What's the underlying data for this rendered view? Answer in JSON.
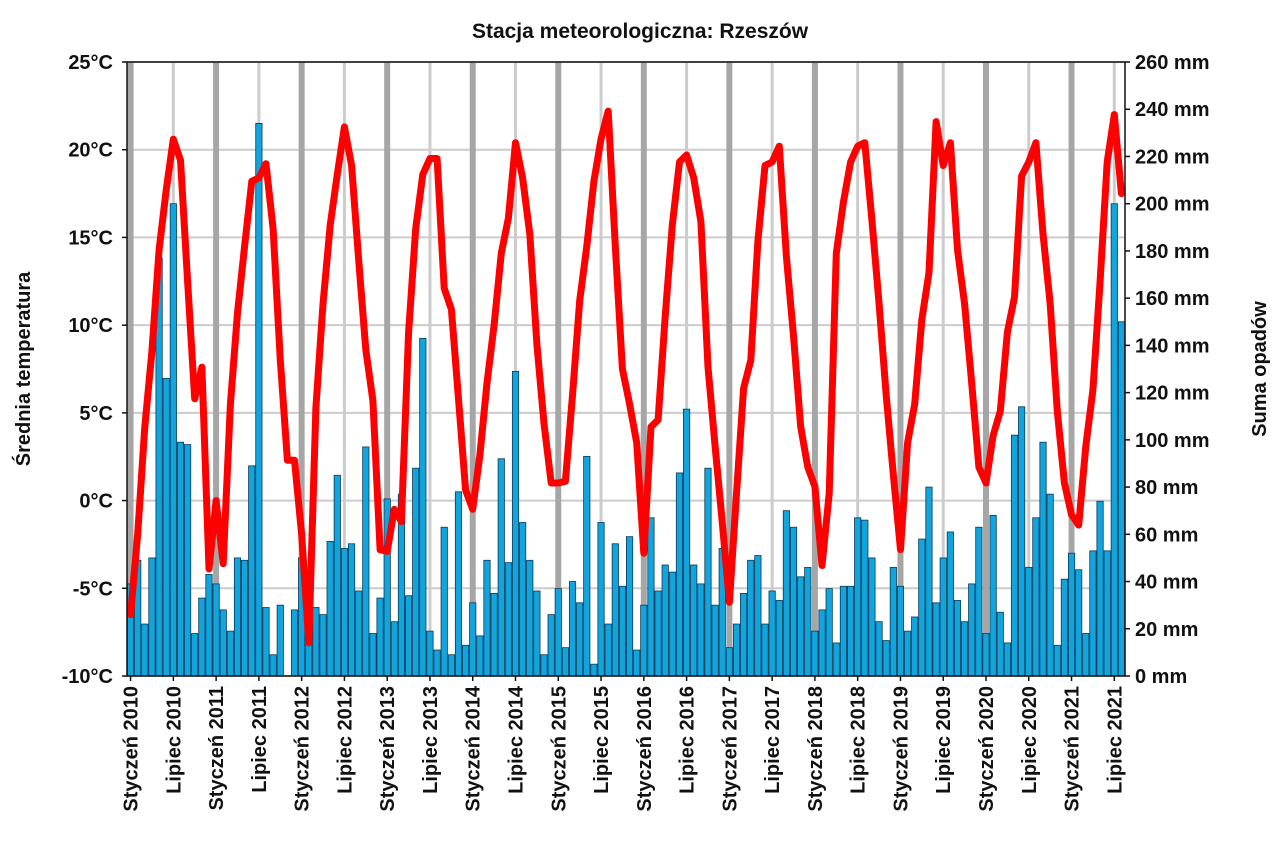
{
  "chart_data": {
    "type": "bar+line",
    "title": "Stacja meteorologiczna: Rzeszów",
    "ylabel_left": "Średnia temperatura",
    "ylabel_right": "Suma opadów",
    "ylim_left": [
      -10,
      25
    ],
    "ylim_right": [
      0,
      260
    ],
    "yticks_left": [
      "-10°C",
      "-5°C",
      "0°C",
      "5°C",
      "10°C",
      "15°C",
      "20°C",
      "25°C"
    ],
    "yticks_right": [
      "0 mm",
      "20 mm",
      "40 mm",
      "60 mm",
      "80 mm",
      "100 mm",
      "120 mm",
      "140 mm",
      "160 mm",
      "180 mm",
      "200 mm",
      "220 mm",
      "240 mm",
      "260 mm"
    ],
    "x_tick_labels": [
      "Styczeń 2010",
      "Lipiec 2010",
      "Styczeń 2011",
      "Lipiec 2011",
      "Styczeń 2012",
      "Lipiec 2012",
      "Styczeń 2013",
      "Lipiec 2013",
      "Styczeń 2014",
      "Lipiec 2014",
      "Styczeń 2015",
      "Lipiec 2015",
      "Styczeń 2016",
      "Lipiec 2016",
      "Styczeń 2017",
      "Lipiec 2017",
      "Styczeń 2018",
      "Lipiec 2018",
      "Styczeń 2019",
      "Lipiec 2019",
      "Styczeń 2020",
      "Lipiec 2020",
      "Styczeń 2021",
      "Lipiec 2021"
    ],
    "x_range": [
      "2010-01",
      "2021-08"
    ],
    "grid": true,
    "colors": {
      "precipitation": "#12a4dd",
      "temperature": "#ff0000",
      "year_grid": "#a6a6a6",
      "grid": "#cccccc"
    },
    "series": [
      {
        "type": "bar",
        "axis": "right",
        "unit": "mm",
        "values": [
          39,
          49,
          22,
          50,
          177,
          126,
          200,
          99,
          98,
          18,
          33,
          43,
          39,
          28,
          19,
          50,
          49,
          89,
          234,
          29,
          9,
          30,
          0,
          28,
          50,
          19,
          29,
          26,
          57,
          85,
          54,
          56,
          36,
          97,
          18,
          33,
          75,
          23,
          77,
          34,
          88,
          143,
          19,
          11,
          63,
          9,
          78,
          13,
          31,
          17,
          49,
          35,
          92,
          48,
          129,
          65,
          49,
          36,
          9,
          26,
          37,
          12,
          40,
          31,
          93,
          5,
          65,
          22,
          56,
          38,
          59,
          11,
          30,
          67,
          36,
          47,
          44,
          86,
          113,
          47,
          39,
          88,
          30,
          54,
          12,
          22,
          35,
          49,
          51,
          22,
          36,
          32,
          70,
          63,
          42,
          46,
          19,
          28,
          37,
          14,
          38,
          38,
          67,
          66,
          50,
          23,
          15,
          46,
          38,
          19,
          25,
          58,
          80,
          31,
          50,
          61,
          32,
          23,
          39,
          63,
          18,
          68,
          27,
          14,
          102,
          114,
          46,
          67,
          99,
          77,
          13,
          41,
          52,
          45,
          18,
          53,
          74,
          53,
          200,
          150
        ]
      },
      {
        "type": "line",
        "axis": "left",
        "unit": "°C",
        "values": [
          -6.5,
          -1.9,
          4.2,
          8.5,
          14.3,
          17.7,
          20.6,
          19.4,
          12.5,
          5.8,
          7.6,
          -3.9,
          0.0,
          -3.6,
          5.5,
          10.7,
          14.5,
          18.2,
          18.4,
          19.2,
          15.5,
          8.0,
          2.3,
          2.3,
          -1.9,
          -8.1,
          5.3,
          11.2,
          15.7,
          18.6,
          21.3,
          19.1,
          13.7,
          8.6,
          5.7,
          -2.8,
          -2.9,
          -0.5,
          -1.2,
          9.6,
          15.5,
          18.6,
          19.5,
          19.5,
          12.1,
          10.9,
          5.8,
          0.6,
          -0.5,
          2.6,
          6.7,
          10.0,
          14.1,
          16.1,
          20.4,
          18.4,
          15.2,
          8.9,
          4.4,
          1.0,
          1.0,
          1.1,
          6.0,
          11.4,
          14.5,
          18.2,
          20.6,
          22.2,
          14.5,
          7.5,
          5.5,
          3.3,
          -3.0,
          4.2,
          4.6,
          10.5,
          15.7,
          19.3,
          19.7,
          18.4,
          15.9,
          7.6,
          3.1,
          -1.2,
          -5.8,
          0.4,
          6.4,
          8.0,
          14.8,
          19.1,
          19.3,
          20.2,
          13.9,
          9.4,
          4.2,
          1.9,
          0.8,
          -3.7,
          0.4,
          14.1,
          17.0,
          19.3,
          20.2,
          20.4,
          16.0,
          11.2,
          6.0,
          1.5,
          -2.8,
          3.3,
          5.5,
          10.3,
          13.0,
          21.6,
          19.1,
          20.4,
          14.3,
          11.2,
          6.7,
          1.9,
          1.0,
          3.7,
          5.1,
          9.6,
          11.6,
          18.5,
          19.3,
          20.4,
          15.2,
          11.2,
          5.1,
          1.0,
          -0.8,
          -1.4,
          3.1,
          6.3,
          12.5,
          19.3,
          22.0,
          17.5
        ]
      }
    ]
  }
}
